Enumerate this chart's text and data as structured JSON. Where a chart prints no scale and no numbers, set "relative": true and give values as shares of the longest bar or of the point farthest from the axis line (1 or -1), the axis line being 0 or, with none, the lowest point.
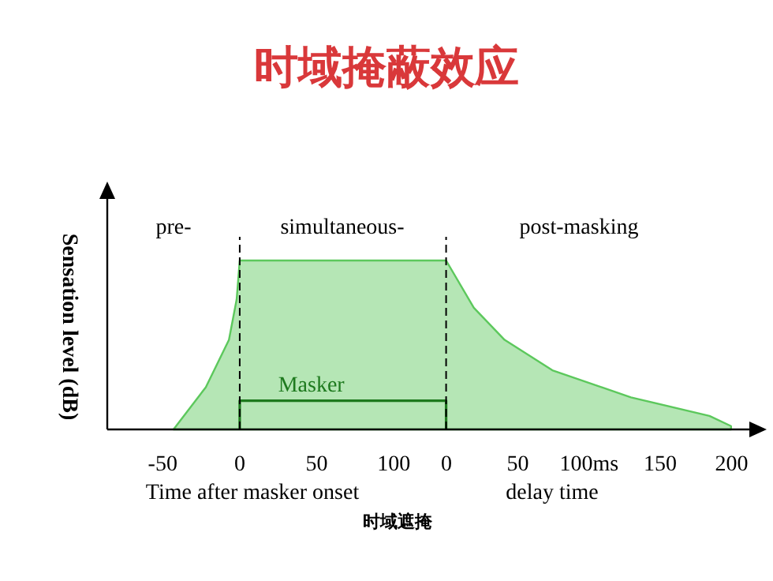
{
  "chart_data": {
    "type": "area",
    "title": "时域掩蔽效应",
    "ylabel": "Sensation level (dB)",
    "xlabel": "Time after masker onset",
    "relative": true,
    "xlim": [
      -86,
      336
    ],
    "xticks": [
      -50,
      0,
      50,
      100
    ],
    "x2label": "delay time",
    "x2lim": [
      -238,
      218
    ],
    "x2ticks": [
      0,
      50,
      {
        "value": 100,
        "label": "100ms"
      },
      150,
      200
    ],
    "series": [
      {
        "type": "area",
        "color": "#5cc85c",
        "x": [
          -43,
          -22,
          -7,
          -2,
          0,
          134,
          152,
          172,
          203,
          254,
          305,
          319
        ],
        "values": [
          0,
          0.25,
          0.53,
          0.77,
          1,
          1,
          0.72,
          0.53,
          0.35,
          0.19,
          0.08,
          0.02
        ]
      },
      {
        "type": "line",
        "name": "Masker",
        "color": "#1e7a1e",
        "x": [
          0,
          0,
          134,
          134
        ],
        "values": [
          0,
          0.17,
          0.17,
          0
        ]
      }
    ],
    "ref_lines": [
      {
        "axis": "x",
        "value": 0,
        "line_style": "dashed",
        "color": "#000000"
      },
      {
        "axis": "x",
        "value": 134,
        "line_style": "dashed",
        "color": "#000000"
      }
    ],
    "annotations": [
      "pre-",
      "simultaneous-",
      "post-masking",
      "时域遮掩"
    ],
    "grid": false,
    "legend": false
  }
}
